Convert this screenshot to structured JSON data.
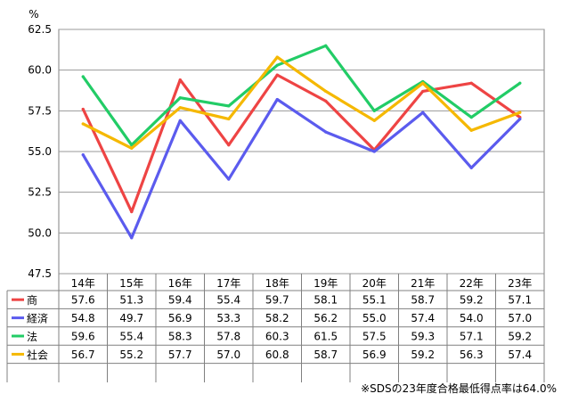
{
  "chart_data": {
    "type": "line",
    "unit_label": "%",
    "categories": [
      "14年",
      "15年",
      "16年",
      "17年",
      "18年",
      "19年",
      "20年",
      "21年",
      "22年",
      "23年"
    ],
    "ylim": [
      47.5,
      62.5
    ],
    "yticks": [
      "47.5",
      "50.0",
      "52.5",
      "55.0",
      "57.5",
      "60.0",
      "62.5"
    ],
    "grid": true,
    "legend": "data-table",
    "series": [
      {
        "name": "商",
        "color": "#ee4444",
        "values": [
          57.6,
          51.3,
          59.4,
          55.4,
          59.7,
          58.1,
          55.1,
          58.7,
          59.2,
          57.1
        ]
      },
      {
        "name": "経済",
        "color": "#5b5bee",
        "values": [
          54.8,
          49.7,
          56.9,
          53.3,
          58.2,
          56.2,
          55.0,
          57.4,
          54.0,
          57.0
        ]
      },
      {
        "name": "法",
        "color": "#22cc66",
        "values": [
          59.6,
          55.4,
          58.3,
          57.8,
          60.3,
          61.5,
          57.5,
          59.3,
          57.1,
          59.2
        ]
      },
      {
        "name": "社会",
        "color": "#f5b800",
        "values": [
          56.7,
          55.2,
          57.7,
          57.0,
          60.8,
          58.7,
          56.9,
          59.2,
          56.3,
          57.4
        ]
      }
    ],
    "table_values": [
      [
        "57.6",
        "51.3",
        "59.4",
        "55.4",
        "59.7",
        "58.1",
        "55.1",
        "58.7",
        "59.2",
        "57.1"
      ],
      [
        "54.8",
        "49.7",
        "56.9",
        "53.3",
        "58.2",
        "56.2",
        "55.0",
        "57.4",
        "54.0",
        "57.0"
      ],
      [
        "59.6",
        "55.4",
        "58.3",
        "57.8",
        "60.3",
        "61.5",
        "57.5",
        "59.3",
        "57.1",
        "59.2"
      ],
      [
        "56.7",
        "55.2",
        "57.7",
        "57.0",
        "60.8",
        "58.7",
        "56.9",
        "59.2",
        "56.3",
        "57.4"
      ]
    ],
    "footnote": "※SDSの23年度合格最低得点率は64.0%"
  }
}
